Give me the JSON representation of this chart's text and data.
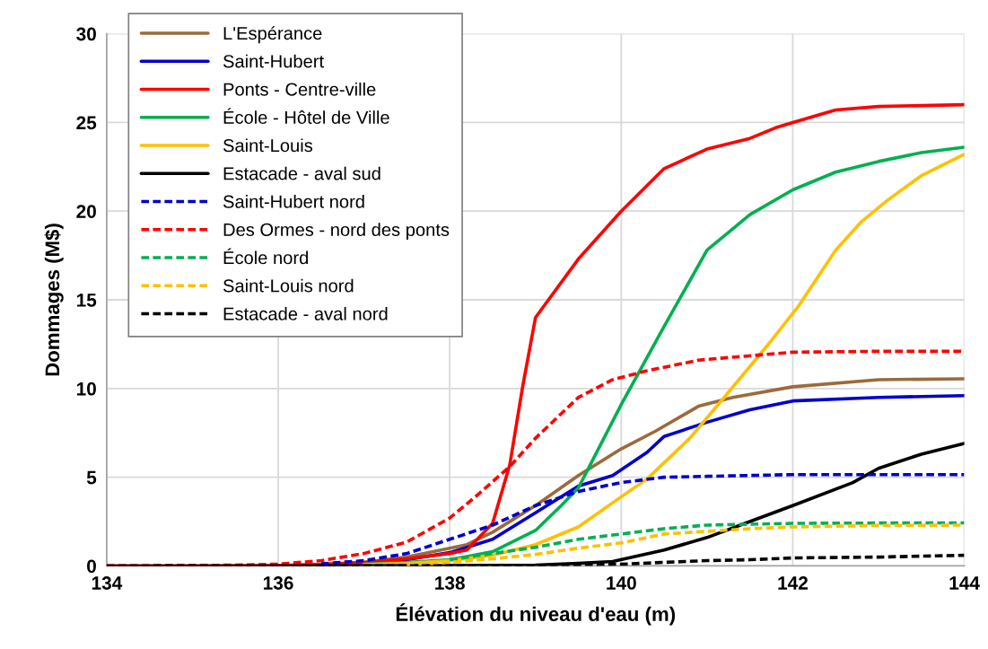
{
  "chart_data": {
    "type": "line",
    "xlabel": "Élévation du niveau d'eau (m)",
    "ylabel": "Dommages (M$)",
    "xlim": [
      134,
      144
    ],
    "xticks": [
      134,
      136,
      138,
      140,
      142,
      144
    ],
    "ylim": [
      0,
      30
    ],
    "yticks": [
      0,
      5,
      10,
      15,
      20,
      25,
      30
    ],
    "grid": true,
    "legend": "top left",
    "marker": "none",
    "series": [
      {
        "name": "L'Espérance",
        "color": "#9b6a3c",
        "line_style": "solid",
        "x": [
          136,
          136.5,
          137,
          137.5,
          138,
          138.2,
          138.5,
          139,
          139.5,
          140,
          140.4,
          140.9,
          141.3,
          142,
          143,
          144
        ],
        "values": [
          0.02,
          0.08,
          0.2,
          0.5,
          1.0,
          1.2,
          1.9,
          3.4,
          5.1,
          6.6,
          7.6,
          9.0,
          9.5,
          10.1,
          10.5,
          10.55
        ]
      },
      {
        "name": "Saint-Hubert",
        "color": "#0000cc",
        "line_style": "solid",
        "x": [
          136.5,
          137,
          137.5,
          138,
          138.5,
          139,
          139.5,
          139.9,
          140.3,
          140.5,
          141,
          141.5,
          142,
          143,
          144
        ],
        "values": [
          0.06,
          0.15,
          0.35,
          0.75,
          1.5,
          3.0,
          4.5,
          5.1,
          6.4,
          7.3,
          8.1,
          8.8,
          9.3,
          9.5,
          9.6
        ]
      },
      {
        "name": "Ponts - Centre-ville",
        "color": "#ff0000",
        "line_style": "solid",
        "x": [
          134,
          135,
          136,
          136.5,
          137,
          137.5,
          138,
          138.2,
          138.5,
          138.7,
          138.85,
          139,
          139.5,
          140,
          140.5,
          141,
          141.5,
          141.8,
          142,
          142.5,
          143,
          144
        ],
        "values": [
          0,
          0,
          0.02,
          0.08,
          0.2,
          0.4,
          0.7,
          0.9,
          2.4,
          5.7,
          10.1,
          14.0,
          17.3,
          20.0,
          22.4,
          23.5,
          24.1,
          24.7,
          25.0,
          25.7,
          25.9,
          26.0
        ]
      },
      {
        "name": "École - Hôtel de Ville",
        "color": "#00b050",
        "line_style": "solid",
        "x": [
          137,
          137.5,
          138,
          138.5,
          139,
          139.3,
          139.5,
          140,
          140.5,
          141,
          141.2,
          141.5,
          142,
          142.5,
          143,
          143.5,
          144
        ],
        "values": [
          0.1,
          0.2,
          0.35,
          0.8,
          2.0,
          3.4,
          4.4,
          9.1,
          13.5,
          17.8,
          18.6,
          19.8,
          21.2,
          22.2,
          22.8,
          23.3,
          23.6
        ]
      },
      {
        "name": "Saint-Louis",
        "color": "#ffc000",
        "line_style": "solid",
        "x": [
          137,
          137.5,
          138,
          138.5,
          139,
          139.5,
          140,
          140.3,
          140.8,
          141.2,
          141.75,
          142.06,
          142.5,
          142.8,
          143.1,
          143.5,
          144
        ],
        "values": [
          0.07,
          0.15,
          0.3,
          0.6,
          1.2,
          2.2,
          3.9,
          4.9,
          7.2,
          9.5,
          12.7,
          14.6,
          17.8,
          19.4,
          20.6,
          22.0,
          23.2
        ]
      },
      {
        "name": "Estacade - aval sud",
        "color": "#000000",
        "line_style": "solid",
        "x": [
          134,
          136,
          137,
          138,
          139,
          139.5,
          139.9,
          140.5,
          141,
          141.5,
          142,
          142.7,
          143,
          143.5,
          144
        ],
        "values": [
          0,
          0,
          0.01,
          0.02,
          0.05,
          0.15,
          0.25,
          0.9,
          1.6,
          2.5,
          3.4,
          4.7,
          5.5,
          6.3,
          6.9
        ]
      },
      {
        "name": "Saint-Hubert nord",
        "color": "#0000cc",
        "line_style": "dashed",
        "x": [
          136.5,
          137,
          137.5,
          138,
          138.5,
          139,
          139.5,
          140,
          140.5,
          141,
          142,
          143,
          144
        ],
        "values": [
          0.12,
          0.3,
          0.7,
          1.5,
          2.3,
          3.4,
          4.2,
          4.7,
          5.0,
          5.05,
          5.15,
          5.15,
          5.15
        ]
      },
      {
        "name": "Des Ormes - nord des ponts",
        "color": "#ff0000",
        "line_style": "dashed",
        "x": [
          134,
          135,
          135.5,
          136,
          136.5,
          137,
          137.5,
          138,
          138.3,
          138.7,
          139,
          139.5,
          139.9,
          140.3,
          140.9,
          142,
          143,
          144
        ],
        "values": [
          0,
          0.02,
          0.05,
          0.1,
          0.3,
          0.7,
          1.35,
          2.7,
          3.9,
          5.6,
          7.2,
          9.5,
          10.5,
          11.0,
          11.6,
          12.05,
          12.1,
          12.1
        ]
      },
      {
        "name": "École nord",
        "color": "#00b050",
        "line_style": "dashed",
        "x": [
          138,
          138.5,
          139,
          139.5,
          140,
          140.5,
          141,
          142,
          143,
          144
        ],
        "values": [
          0.35,
          0.7,
          1.05,
          1.5,
          1.8,
          2.1,
          2.3,
          2.4,
          2.42,
          2.43
        ]
      },
      {
        "name": "Saint-Louis nord",
        "color": "#ffc000",
        "line_style": "dashed",
        "x": [
          137.5,
          138,
          138.5,
          139,
          139.5,
          140,
          140.5,
          141,
          141.5,
          142,
          143,
          144
        ],
        "values": [
          0.08,
          0.2,
          0.4,
          0.65,
          1.0,
          1.3,
          1.8,
          1.95,
          2.1,
          2.2,
          2.28,
          2.3
        ]
      },
      {
        "name": "Estacade - aval nord",
        "color": "#000000",
        "line_style": "dashed",
        "x": [
          134,
          138,
          139,
          140,
          140.5,
          141,
          141.5,
          142,
          143,
          144
        ],
        "values": [
          0,
          0.01,
          0.03,
          0.1,
          0.2,
          0.3,
          0.35,
          0.45,
          0.5,
          0.6
        ]
      }
    ]
  }
}
